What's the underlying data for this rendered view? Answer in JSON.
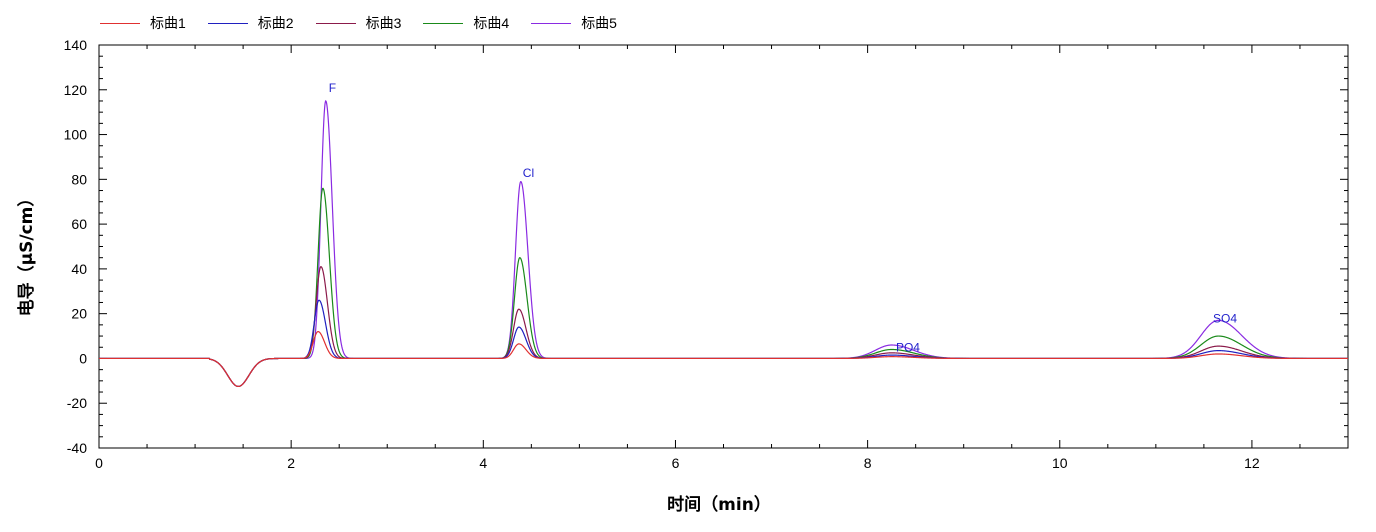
{
  "chart_data": {
    "type": "line",
    "xlabel": "时间（min）",
    "ylabel": "电导（µS/cm）",
    "xlim": [
      0,
      13
    ],
    "ylim": [
      -40,
      140
    ],
    "x_major_ticks": [
      0,
      2,
      4,
      6,
      8,
      10,
      12
    ],
    "y_major_ticks": [
      -40,
      -20,
      0,
      20,
      40,
      60,
      80,
      100,
      120,
      140
    ],
    "legend_position": "top-left",
    "grid": false,
    "baseline_dip": {
      "center": 1.45,
      "width": 0.11,
      "depth": -12.5,
      "start": 1.15,
      "end": 2.2
    },
    "peaks": [
      {
        "label": "F",
        "label_x": 2.43,
        "label_y": 119,
        "width": 0.05
      },
      {
        "label": "Cl",
        "label_x": 4.47,
        "label_y": 81,
        "width": 0.055
      },
      {
        "label": "PO4",
        "label_x": 8.42,
        "label_y": 3,
        "width": 0.17
      },
      {
        "label": "SO4",
        "label_x": 11.72,
        "label_y": 16,
        "width": 0.18
      }
    ],
    "series": [
      {
        "name": "标曲1",
        "color": "#e03030",
        "peaks": [
          {
            "center": 2.28,
            "height": 12
          },
          {
            "center": 4.37,
            "height": 6.5
          },
          {
            "center": 8.25,
            "height": 0.8
          },
          {
            "center": 11.65,
            "height": 2
          }
        ]
      },
      {
        "name": "标曲2",
        "color": "#2020c0",
        "peaks": [
          {
            "center": 2.29,
            "height": 26
          },
          {
            "center": 4.37,
            "height": 14
          },
          {
            "center": 8.25,
            "height": 1.5
          },
          {
            "center": 11.65,
            "height": 3.5
          }
        ]
      },
      {
        "name": "标曲3",
        "color": "#8b1a4a",
        "peaks": [
          {
            "center": 2.31,
            "height": 41
          },
          {
            "center": 4.37,
            "height": 22
          },
          {
            "center": 8.25,
            "height": 2.5
          },
          {
            "center": 11.65,
            "height": 5.5
          }
        ]
      },
      {
        "name": "标曲4",
        "color": "#1a8a1a",
        "peaks": [
          {
            "center": 2.33,
            "height": 76
          },
          {
            "center": 4.38,
            "height": 45
          },
          {
            "center": 8.25,
            "height": 4
          },
          {
            "center": 11.65,
            "height": 10
          }
        ]
      },
      {
        "name": "标曲5",
        "color": "#8a2be2",
        "peaks": [
          {
            "center": 2.36,
            "height": 115
          },
          {
            "center": 4.39,
            "height": 79
          },
          {
            "center": 8.25,
            "height": 6
          },
          {
            "center": 11.65,
            "height": 17
          }
        ]
      }
    ]
  }
}
